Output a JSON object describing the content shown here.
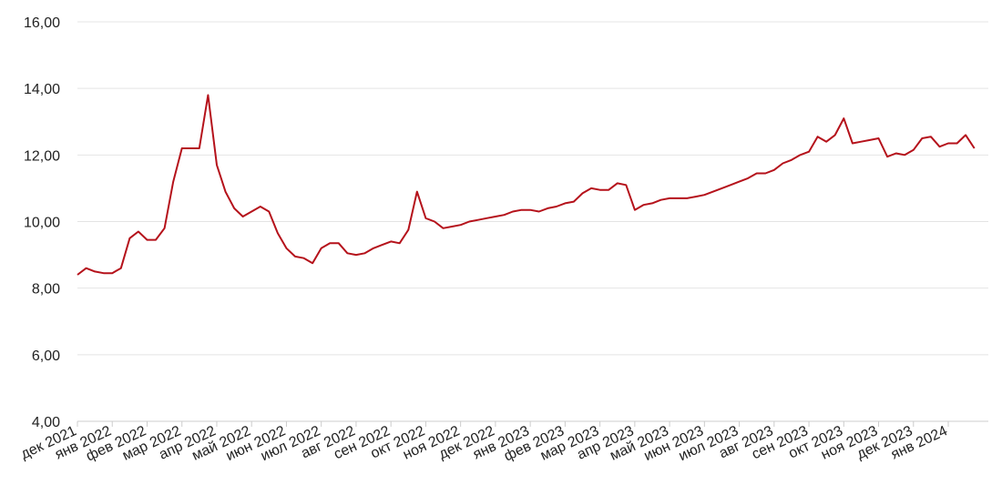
{
  "chart_data": {
    "type": "line",
    "categories": [
      "дек 2021",
      null,
      null,
      null,
      "янв 2022",
      null,
      null,
      null,
      "фев 2022",
      null,
      null,
      null,
      "мар 2022",
      null,
      null,
      null,
      "апр 2022",
      null,
      null,
      null,
      "май 2022",
      null,
      null,
      null,
      "июн 2022",
      null,
      null,
      null,
      "июл 2022",
      null,
      null,
      null,
      "авг 2022",
      null,
      null,
      null,
      "сен 2022",
      null,
      null,
      null,
      "окт 2022",
      null,
      null,
      null,
      "ноя 2022",
      null,
      null,
      null,
      "дек 2022",
      null,
      null,
      null,
      "янв 2023",
      null,
      null,
      null,
      "фев 2023",
      null,
      null,
      null,
      "мар 2023",
      null,
      null,
      null,
      "апр 2023",
      null,
      null,
      null,
      "май 2023",
      null,
      null,
      null,
      "июн 2023",
      null,
      null,
      null,
      "июл 2023",
      null,
      null,
      null,
      "авг 2023",
      null,
      null,
      null,
      "сен 2023",
      null,
      null,
      null,
      "окт 2023",
      null,
      null,
      null,
      "ноя 2023",
      null,
      null,
      null,
      "дек 2023",
      null,
      null,
      null,
      "янв 2024",
      null,
      null,
      null
    ],
    "values": [
      8.4,
      8.6,
      8.5,
      8.45,
      8.45,
      8.6,
      9.5,
      9.7,
      9.45,
      9.45,
      9.8,
      11.2,
      12.2,
      12.2,
      12.2,
      13.8,
      11.7,
      10.9,
      10.4,
      10.15,
      10.3,
      10.45,
      10.3,
      9.65,
      9.2,
      8.95,
      8.9,
      8.75,
      9.2,
      9.35,
      9.35,
      9.05,
      9.0,
      9.05,
      9.2,
      9.3,
      9.4,
      9.35,
      9.75,
      10.9,
      10.1,
      10.0,
      9.8,
      9.85,
      9.9,
      10.0,
      10.05,
      10.1,
      10.15,
      10.2,
      10.3,
      10.35,
      10.35,
      10.3,
      10.4,
      10.45,
      10.55,
      10.6,
      10.85,
      11.0,
      10.95,
      10.95,
      11.15,
      11.1,
      10.35,
      10.5,
      10.55,
      10.65,
      10.7,
      10.7,
      10.7,
      10.75,
      10.8,
      10.9,
      11.0,
      11.1,
      11.2,
      11.3,
      11.45,
      11.45,
      11.55,
      11.75,
      11.85,
      12.0,
      12.1,
      12.55,
      12.4,
      12.6,
      13.1,
      12.35,
      12.4,
      12.45,
      12.5,
      11.95,
      12.05,
      12.0,
      12.15,
      12.5,
      12.55,
      12.25,
      12.35,
      12.35,
      12.6,
      12.2
    ],
    "color": "#b5121b",
    "ylim": [
      4,
      16
    ],
    "yticks": [
      {
        "value": 4,
        "label": "4,00"
      },
      {
        "value": 6,
        "label": "6,00"
      },
      {
        "value": 8,
        "label": "8,00"
      },
      {
        "value": 10,
        "label": "10,00"
      },
      {
        "value": 12,
        "label": "12,00"
      },
      {
        "value": 14,
        "label": "14,00"
      },
      {
        "value": 16,
        "label": "16,00"
      }
    ],
    "grid": true
  }
}
